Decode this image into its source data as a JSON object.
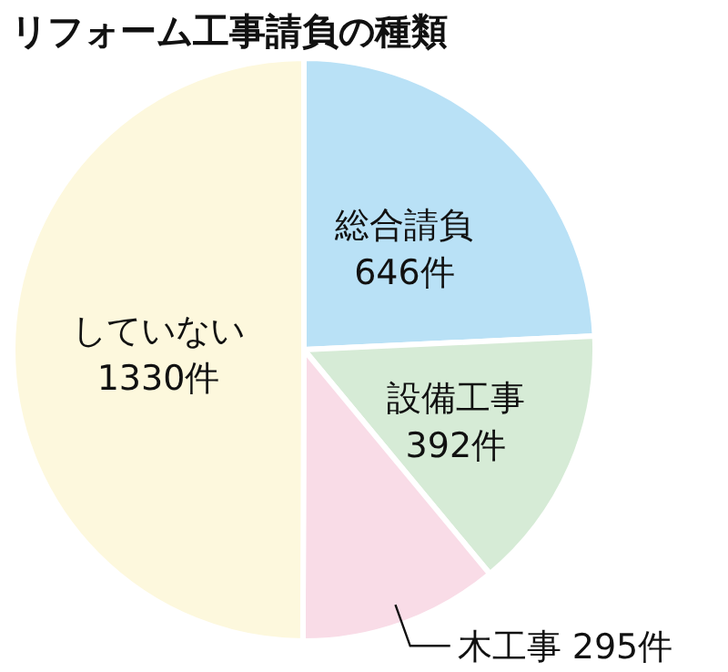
{
  "chart_data": {
    "type": "pie",
    "title": "リフォーム工事請負の種類",
    "categories": [
      "総合請負",
      "設備工事",
      "木工事",
      "していない"
    ],
    "values": [
      646,
      392,
      295,
      1330
    ],
    "value_labels": [
      "646件",
      "392件",
      "295件",
      "1330件"
    ],
    "colors": [
      "#b9e1f6",
      "#d6ebd6",
      "#f9dce7",
      "#fdf8dd"
    ]
  }
}
